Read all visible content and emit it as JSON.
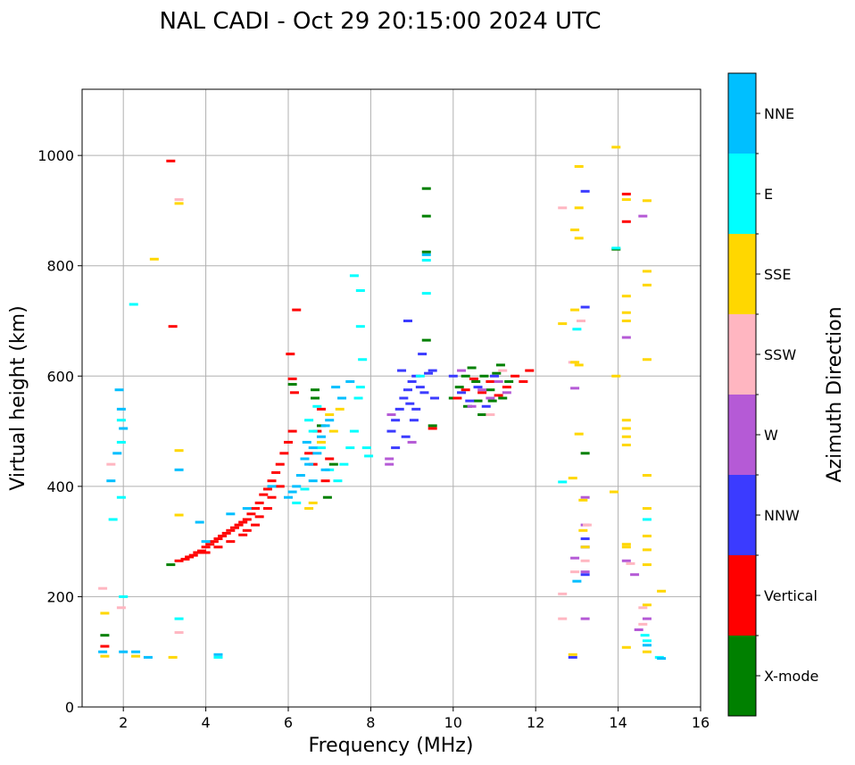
{
  "chart_data": {
    "type": "scatter",
    "title": "NAL CADI - Oct 29 20:15:00 2024 UTC",
    "xlabel": "Frequency (MHz)",
    "ylabel": "Virtual height (km)",
    "xlim": [
      1,
      16
    ],
    "ylim": [
      0,
      1120
    ],
    "xticks": [
      2,
      4,
      6,
      8,
      10,
      12,
      14,
      16
    ],
    "yticks": [
      0,
      200,
      400,
      600,
      800,
      1000
    ],
    "grid": true,
    "colorbar": {
      "title": "Azimuth Direction",
      "categories": [
        {
          "name": "X-mode",
          "color": "#008000"
        },
        {
          "name": "Vertical",
          "color": "#ff0000"
        },
        {
          "name": "NNW",
          "color": "#3b3bff"
        },
        {
          "name": "W",
          "color": "#b55ad6"
        },
        {
          "name": "SSW",
          "color": "#ffb6c1"
        },
        {
          "name": "SSE",
          "color": "#ffd700"
        },
        {
          "name": "E",
          "color": "#00ffff"
        },
        {
          "name": "NNE",
          "color": "#00bfff"
        }
      ]
    },
    "series": [
      {
        "name": "X-mode",
        "points": [
          [
            1.55,
            130
          ],
          [
            3.15,
            258
          ],
          [
            6.1,
            585
          ],
          [
            6.65,
            575
          ],
          [
            6.65,
            560
          ],
          [
            6.8,
            510
          ],
          [
            6.95,
            380
          ],
          [
            7.1,
            440
          ],
          [
            9.35,
            940
          ],
          [
            9.35,
            890
          ],
          [
            9.35,
            825
          ],
          [
            9.35,
            665
          ],
          [
            9.5,
            510
          ],
          [
            10.0,
            560
          ],
          [
            10.15,
            580
          ],
          [
            10.3,
            600
          ],
          [
            10.45,
            615
          ],
          [
            10.6,
            555
          ],
          [
            10.75,
            600
          ],
          [
            10.9,
            575
          ],
          [
            11.05,
            605
          ],
          [
            11.2,
            560
          ],
          [
            11.35,
            590
          ],
          [
            13.95,
            830
          ],
          [
            13.2,
            460
          ],
          [
            10.35,
            545
          ],
          [
            10.55,
            590
          ],
          [
            10.95,
            555
          ],
          [
            11.15,
            620
          ],
          [
            10.7,
            530
          ]
        ]
      },
      {
        "name": "Vertical",
        "points": [
          [
            1.55,
            110
          ],
          [
            3.15,
            990
          ],
          [
            3.2,
            690
          ],
          [
            3.35,
            265
          ],
          [
            3.5,
            268
          ],
          [
            3.6,
            272
          ],
          [
            3.7,
            275
          ],
          [
            3.8,
            280
          ],
          [
            3.9,
            283
          ],
          [
            4.0,
            290
          ],
          [
            4.1,
            295
          ],
          [
            4.2,
            300
          ],
          [
            4.3,
            305
          ],
          [
            4.4,
            310
          ],
          [
            4.5,
            315
          ],
          [
            4.6,
            320
          ],
          [
            4.7,
            325
          ],
          [
            4.8,
            330
          ],
          [
            4.9,
            335
          ],
          [
            5.0,
            340
          ],
          [
            5.1,
            350
          ],
          [
            5.2,
            360
          ],
          [
            5.3,
            370
          ],
          [
            5.4,
            385
          ],
          [
            5.5,
            395
          ],
          [
            5.6,
            410
          ],
          [
            5.7,
            425
          ],
          [
            5.8,
            440
          ],
          [
            5.9,
            460
          ],
          [
            6.0,
            480
          ],
          [
            6.1,
            500
          ],
          [
            6.2,
            720
          ],
          [
            6.05,
            640
          ],
          [
            6.1,
            595
          ],
          [
            6.15,
            570
          ],
          [
            6.5,
            460
          ],
          [
            6.6,
            440
          ],
          [
            6.7,
            500
          ],
          [
            6.8,
            540
          ],
          [
            6.9,
            410
          ],
          [
            7.0,
            450
          ],
          [
            9.5,
            505
          ],
          [
            10.1,
            560
          ],
          [
            10.3,
            575
          ],
          [
            10.5,
            595
          ],
          [
            10.7,
            570
          ],
          [
            10.9,
            590
          ],
          [
            11.1,
            565
          ],
          [
            11.3,
            580
          ],
          [
            11.5,
            600
          ],
          [
            11.7,
            590
          ],
          [
            11.85,
            610
          ],
          [
            14.2,
            930
          ],
          [
            14.2,
            880
          ],
          [
            4.0,
            280
          ],
          [
            4.3,
            290
          ],
          [
            4.6,
            300
          ],
          [
            4.9,
            312
          ],
          [
            5.2,
            330
          ],
          [
            5.5,
            360
          ],
          [
            5.8,
            400
          ],
          [
            5.0,
            320
          ],
          [
            5.3,
            345
          ],
          [
            5.6,
            380
          ]
        ]
      },
      {
        "name": "NNW",
        "points": [
          [
            8.5,
            500
          ],
          [
            8.6,
            520
          ],
          [
            8.7,
            540
          ],
          [
            8.8,
            560
          ],
          [
            8.9,
            575
          ],
          [
            9.0,
            590
          ],
          [
            9.1,
            600
          ],
          [
            9.2,
            580
          ],
          [
            8.75,
            610
          ],
          [
            8.95,
            550
          ],
          [
            9.05,
            520
          ],
          [
            8.85,
            490
          ],
          [
            9.3,
            570
          ],
          [
            9.5,
            610
          ],
          [
            9.55,
            560
          ],
          [
            10.0,
            600
          ],
          [
            10.2,
            570
          ],
          [
            10.4,
            555
          ],
          [
            10.6,
            580
          ],
          [
            9.25,
            640
          ],
          [
            8.9,
            700
          ],
          [
            13.2,
            935
          ],
          [
            13.2,
            725
          ],
          [
            12.9,
            90
          ],
          [
            13.2,
            305
          ],
          [
            13.2,
            290
          ],
          [
            13.2,
            240
          ],
          [
            9.4,
            605
          ],
          [
            8.6,
            470
          ],
          [
            9.1,
            540
          ],
          [
            10.8,
            545
          ],
          [
            11.0,
            600
          ]
        ]
      },
      {
        "name": "W",
        "points": [
          [
            8.45,
            440
          ],
          [
            8.45,
            450
          ],
          [
            8.5,
            530
          ],
          [
            9.0,
            480
          ],
          [
            12.95,
            578
          ],
          [
            12.95,
            270
          ],
          [
            13.2,
            380
          ],
          [
            13.2,
            160
          ],
          [
            13.2,
            245
          ],
          [
            13.2,
            330
          ],
          [
            14.2,
            670
          ],
          [
            14.4,
            240
          ],
          [
            14.6,
            890
          ],
          [
            14.5,
            140
          ],
          [
            14.7,
            160
          ],
          [
            14.2,
            265
          ],
          [
            10.7,
            575
          ],
          [
            10.9,
            560
          ],
          [
            11.1,
            590
          ],
          [
            11.3,
            570
          ],
          [
            10.2,
            610
          ],
          [
            10.45,
            545
          ]
        ]
      },
      {
        "name": "SSW",
        "points": [
          [
            1.5,
            215
          ],
          [
            1.7,
            440
          ],
          [
            1.95,
            180
          ],
          [
            12.65,
            905
          ],
          [
            12.65,
            205
          ],
          [
            12.65,
            160
          ],
          [
            13.1,
            700
          ],
          [
            12.9,
            625
          ],
          [
            13.25,
            330
          ],
          [
            13.2,
            265
          ],
          [
            14.3,
            260
          ],
          [
            14.6,
            180
          ],
          [
            14.6,
            150
          ],
          [
            3.35,
            920
          ],
          [
            3.35,
            135
          ],
          [
            12.95,
            245
          ],
          [
            10.9,
            530
          ],
          [
            11.2,
            610
          ]
        ]
      },
      {
        "name": "SSE",
        "points": [
          [
            1.55,
            170
          ],
          [
            1.55,
            92
          ],
          [
            2.3,
            92
          ],
          [
            2.75,
            812
          ],
          [
            3.2,
            90
          ],
          [
            3.35,
            913
          ],
          [
            3.35,
            465
          ],
          [
            3.35,
            348
          ],
          [
            6.5,
            360
          ],
          [
            6.6,
            370
          ],
          [
            6.8,
            480
          ],
          [
            7.0,
            530
          ],
          [
            7.1,
            500
          ],
          [
            7.25,
            540
          ],
          [
            12.65,
            695
          ],
          [
            12.95,
            865
          ],
          [
            12.95,
            720
          ],
          [
            12.95,
            625
          ],
          [
            13.05,
            980
          ],
          [
            13.05,
            905
          ],
          [
            13.05,
            850
          ],
          [
            13.05,
            620
          ],
          [
            13.05,
            495
          ],
          [
            13.15,
            375
          ],
          [
            13.15,
            320
          ],
          [
            13.2,
            290
          ],
          [
            12.9,
            415
          ],
          [
            12.9,
            95
          ],
          [
            13.95,
            1015
          ],
          [
            13.95,
            600
          ],
          [
            14.2,
            920
          ],
          [
            14.2,
            715
          ],
          [
            14.2,
            700
          ],
          [
            14.2,
            520
          ],
          [
            14.2,
            505
          ],
          [
            14.2,
            490
          ],
          [
            14.2,
            475
          ],
          [
            14.2,
            295
          ],
          [
            14.2,
            290
          ],
          [
            14.2,
            108
          ],
          [
            14.7,
            918
          ],
          [
            14.7,
            790
          ],
          [
            14.7,
            765
          ],
          [
            14.7,
            630
          ],
          [
            14.7,
            420
          ],
          [
            14.7,
            360
          ],
          [
            14.7,
            310
          ],
          [
            14.7,
            285
          ],
          [
            14.7,
            258
          ],
          [
            14.7,
            185
          ],
          [
            14.7,
            100
          ],
          [
            15.05,
            210
          ],
          [
            14.2,
            745
          ],
          [
            13.9,
            390
          ]
        ]
      },
      {
        "name": "E",
        "points": [
          [
            1.95,
            520
          ],
          [
            1.95,
            480
          ],
          [
            1.95,
            380
          ],
          [
            2.0,
            200
          ],
          [
            2.25,
            730
          ],
          [
            1.75,
            340
          ],
          [
            3.35,
            160
          ],
          [
            4.3,
            90
          ],
          [
            6.5,
            520
          ],
          [
            6.6,
            500
          ],
          [
            6.7,
            545
          ],
          [
            6.8,
            470
          ],
          [
            7.0,
            430
          ],
          [
            7.2,
            410
          ],
          [
            7.35,
            440
          ],
          [
            7.5,
            470
          ],
          [
            7.6,
            500
          ],
          [
            7.7,
            560
          ],
          [
            7.75,
            580
          ],
          [
            7.8,
            630
          ],
          [
            7.75,
            690
          ],
          [
            7.75,
            755
          ],
          [
            7.6,
            782
          ],
          [
            7.95,
            455
          ],
          [
            7.9,
            470
          ],
          [
            9.35,
            750
          ],
          [
            9.35,
            810
          ],
          [
            9.2,
            600
          ],
          [
            12.65,
            408
          ],
          [
            13.0,
            685
          ],
          [
            13.95,
            832
          ],
          [
            14.7,
            340
          ],
          [
            15.0,
            90
          ],
          [
            14.7,
            120
          ],
          [
            14.65,
            130
          ],
          [
            6.4,
            395
          ],
          [
            6.2,
            370
          ]
        ]
      },
      {
        "name": "NNE",
        "points": [
          [
            1.5,
            100
          ],
          [
            1.85,
            460
          ],
          [
            1.9,
            575
          ],
          [
            1.95,
            540
          ],
          [
            2.0,
            505
          ],
          [
            2.0,
            100
          ],
          [
            2.3,
            100
          ],
          [
            2.6,
            90
          ],
          [
            3.35,
            430
          ],
          [
            3.85,
            335
          ],
          [
            4.0,
            300
          ],
          [
            4.3,
            95
          ],
          [
            4.6,
            350
          ],
          [
            5.0,
            360
          ],
          [
            5.6,
            400
          ],
          [
            6.0,
            380
          ],
          [
            6.1,
            390
          ],
          [
            6.2,
            400
          ],
          [
            6.3,
            420
          ],
          [
            6.4,
            450
          ],
          [
            6.5,
            440
          ],
          [
            6.6,
            470
          ],
          [
            6.7,
            460
          ],
          [
            6.8,
            490
          ],
          [
            6.9,
            510
          ],
          [
            7.0,
            520
          ],
          [
            7.15,
            580
          ],
          [
            7.3,
            560
          ],
          [
            7.5,
            590
          ],
          [
            9.35,
            820
          ],
          [
            13.0,
            228
          ],
          [
            14.7,
            112
          ],
          [
            15.05,
            88
          ],
          [
            1.7,
            410
          ],
          [
            6.9,
            430
          ],
          [
            6.6,
            410
          ],
          [
            6.45,
            480
          ]
        ]
      }
    ]
  }
}
